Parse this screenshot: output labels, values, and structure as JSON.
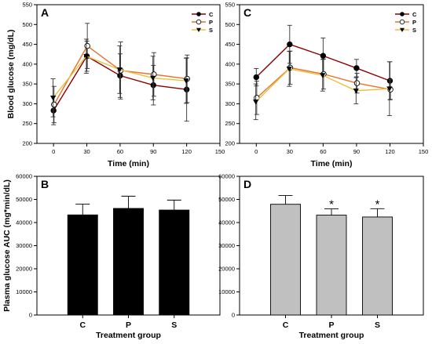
{
  "chart_data": [
    {
      "id": "A",
      "panel_label": "A",
      "type": "line",
      "ylabel": "Blood glucose (mg/dL)",
      "xlabel": "Time (min)",
      "xlim": [
        -15,
        150
      ],
      "ylim": [
        200,
        550
      ],
      "xticks": [
        "0",
        "30",
        "60",
        "90",
        "120",
        "150"
      ],
      "yticks": [
        "200",
        "250",
        "300",
        "350",
        "400",
        "450",
        "500",
        "550"
      ],
      "x": [
        0,
        30,
        60,
        90,
        120
      ],
      "legend": "top-right",
      "series": [
        {
          "name": "C",
          "color": "#8b0000",
          "marker": "circle-filled",
          "values": [
            283,
            420,
            371,
            347,
            336
          ],
          "errors": [
            36,
            38,
            55,
            50,
            80
          ]
        },
        {
          "name": "P",
          "color": "#e8722a",
          "marker": "circle-open",
          "values": [
            298,
            446,
            384,
            374,
            363
          ],
          "errors": [
            46,
            57,
            72,
            55,
            60
          ]
        },
        {
          "name": "S",
          "color": "#e8c040",
          "marker": "triangle-down",
          "values": [
            315,
            420,
            386,
            365,
            358
          ],
          "errors": [
            48,
            43,
            60,
            55,
            57
          ]
        }
      ]
    },
    {
      "id": "C",
      "panel_label": "C",
      "type": "line",
      "ylabel": "",
      "xlabel": "Time (min)",
      "xlim": [
        -15,
        150
      ],
      "ylim": [
        200,
        550
      ],
      "xticks": [
        "0",
        "30",
        "60",
        "90",
        "120",
        "150"
      ],
      "yticks": [
        "200",
        "250",
        "300",
        "350",
        "400",
        "450",
        "500",
        "550"
      ],
      "x": [
        0,
        30,
        60,
        90,
        120
      ],
      "legend": "top-right",
      "series": [
        {
          "name": "C",
          "color": "#8b0000",
          "marker": "circle-filled",
          "values": [
            367,
            450,
            421,
            390,
            358
          ],
          "errors": [
            22,
            48,
            45,
            22,
            48
          ]
        },
        {
          "name": "P",
          "color": "#e8722a",
          "marker": "circle-open",
          "values": [
            315,
            391,
            375,
            352,
            336
          ],
          "errors": [
            42,
            42,
            38,
            25,
            25
          ]
        },
        {
          "name": "S",
          "color": "#e8c040",
          "marker": "triangle-down",
          "values": [
            305,
            388,
            372,
            333,
            338
          ],
          "errors": [
            45,
            44,
            40,
            33,
            68
          ]
        }
      ]
    },
    {
      "id": "B",
      "panel_label": "B",
      "type": "bar",
      "ylabel": "Plasma glucose AUC (mg*min/dL)",
      "xlabel": "Treatment group",
      "categories": [
        "C",
        "P",
        "S"
      ],
      "values": [
        43300,
        46100,
        45400
      ],
      "errors": [
        4700,
        5300,
        4300
      ],
      "ylim": [
        0,
        60000
      ],
      "yticks": [
        "0",
        "10000",
        "20000",
        "30000",
        "40000",
        "50000",
        "60000"
      ],
      "bar_color": "#000000",
      "significance": [
        "",
        "",
        ""
      ]
    },
    {
      "id": "D",
      "panel_label": "D",
      "type": "bar",
      "ylabel": "",
      "xlabel": "Treatment group",
      "categories": [
        "C",
        "P",
        "S"
      ],
      "values": [
        47900,
        43200,
        42400
      ],
      "errors": [
        3800,
        2700,
        3600
      ],
      "ylim": [
        0,
        60000
      ],
      "yticks": [
        "0",
        "10000",
        "20000",
        "30000",
        "40000",
        "50000",
        "60000"
      ],
      "bar_color": "#c0c0c0",
      "significance": [
        "",
        "*",
        "*"
      ]
    }
  ]
}
